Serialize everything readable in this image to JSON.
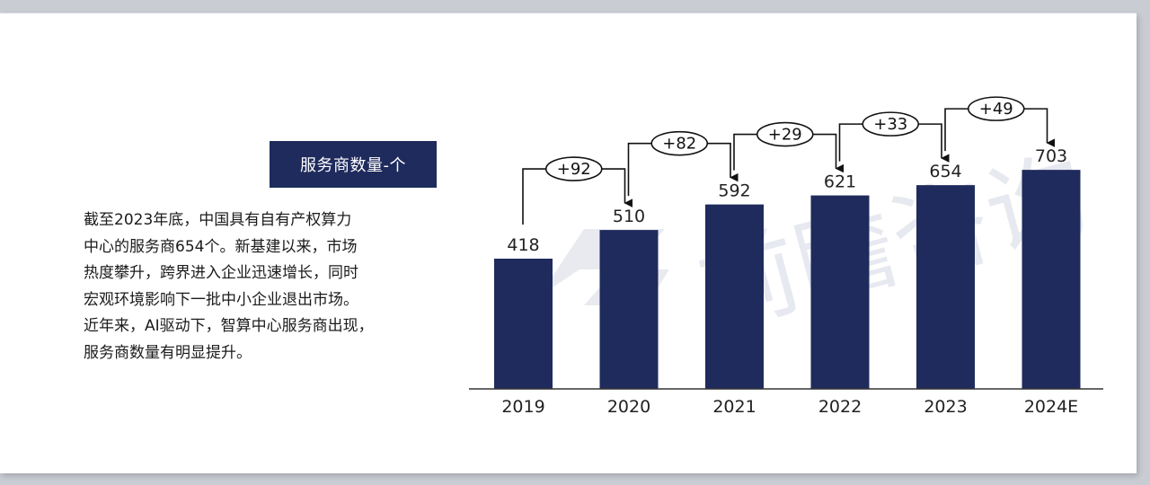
{
  "panel": {
    "title": "服务商数量-个",
    "description_lines": [
      "截至2023年底，中国具有自有产权算力",
      "中心的服务商654个。新基建以来，市场",
      "热度攀升，跨界进入企业迅速增长，同时",
      "宏观环境影响下一批中小企业退出市场。",
      "近年来，AI驱动下，智算中心服务商出现，",
      "服务商数量有明显提升。"
    ]
  },
  "watermark": "前瞻咨询",
  "colors": {
    "bar": "#1f2b5c",
    "title_bg": "#1f2b5c",
    "axis": "#333333"
  },
  "chart_data": {
    "type": "bar",
    "title": "服务商数量-个",
    "categories": [
      "2019",
      "2020",
      "2021",
      "2022",
      "2023",
      "2024E"
    ],
    "values": [
      418,
      510,
      592,
      621,
      654,
      703
    ],
    "deltas": [
      "+92",
      "+82",
      "+29",
      "+33",
      "+49"
    ],
    "ylim": [
      0,
      780
    ],
    "grid": false,
    "legend": "none"
  }
}
